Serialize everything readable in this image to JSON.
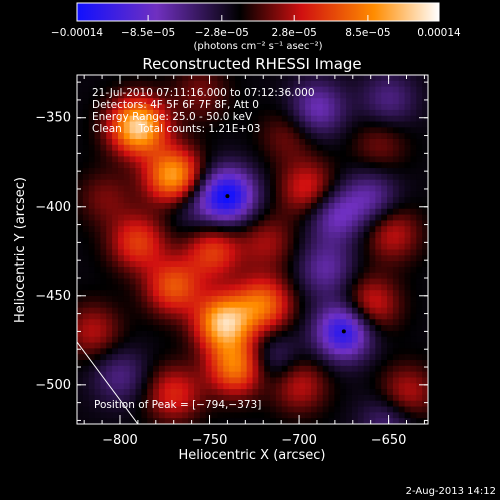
{
  "chart_data": {
    "type": "heatmap",
    "title": "Reconstructed RHESSI Image",
    "xlabel": "Heliocentric X (arcsec)",
    "ylabel": "Heliocentric Y (arcsec)",
    "xlim": [
      -824,
      -628
    ],
    "ylim": [
      -522,
      -326
    ],
    "xticks": [
      -800,
      -750,
      -700,
      -650
    ],
    "xtick_labels": [
      "−800",
      "−750",
      "−700",
      "−650"
    ],
    "yticks": [
      -350,
      -400,
      -450,
      -500
    ],
    "ytick_labels": [
      "−350",
      "−400",
      "−450",
      "−500"
    ],
    "colorbar": {
      "range": [
        -0.00014,
        0.00014
      ],
      "tick_values": [
        -0.00014,
        -8.5e-05,
        -2.8e-05,
        2.8e-05,
        8.5e-05,
        0.00014
      ],
      "tick_labels": [
        "−0.00014",
        "−8.5e−05",
        "−2.8e−05",
        "2.8e−05",
        "8.5e−05",
        "0.00014"
      ],
      "unit_label": "(photons cm⁻² s⁻¹ asec⁻²)",
      "colors": [
        "#1010ff",
        "#7030c0",
        "#000000",
        "#d01010",
        "#ff8c00",
        "#ffffff"
      ]
    },
    "annotations": [
      "21-Jul-2010 07:11:16.000 to 07:12:36.000",
      "Detectors: 4F 5F 6F 7F 8F, Att 0",
      "Energy Range: 25.0 - 50.0 keV",
      "Clean     Total counts: 1.21E+03"
    ],
    "peak_label": "Position of Peak = [−794,−373]",
    "minima_markers": [
      {
        "x": -740,
        "y": -394
      },
      {
        "x": -675,
        "y": -470
      }
    ],
    "limb_line": [
      {
        "x": -824,
        "y": -476
      },
      {
        "x": -790,
        "y": -522
      }
    ],
    "blobs": [
      {
        "x": -790,
        "y": -355,
        "v": 0.00014
      },
      {
        "x": -770,
        "y": -383,
        "v": 0.00012
      },
      {
        "x": -748,
        "y": -425,
        "v": 7e-05
      },
      {
        "x": -742,
        "y": -465,
        "v": 0.00013
      },
      {
        "x": -735,
        "y": -490,
        "v": 0.0001
      },
      {
        "x": -720,
        "y": -455,
        "v": 9e-05
      },
      {
        "x": -770,
        "y": -445,
        "v": 8e-05
      },
      {
        "x": -790,
        "y": -420,
        "v": 7e-05
      },
      {
        "x": -770,
        "y": -505,
        "v": 6e-05
      },
      {
        "x": -815,
        "y": -470,
        "v": 4.5e-05
      },
      {
        "x": -808,
        "y": -395,
        "v": 3e-05
      },
      {
        "x": -695,
        "y": -390,
        "v": 6e-05
      },
      {
        "x": -706,
        "y": -360,
        "v": 3e-05
      },
      {
        "x": -700,
        "y": -500,
        "v": 5e-05
      },
      {
        "x": -718,
        "y": -420,
        "v": 4e-05
      },
      {
        "x": -660,
        "y": -455,
        "v": 6e-05
      },
      {
        "x": -648,
        "y": -415,
        "v": 5e-05
      },
      {
        "x": -640,
        "y": -505,
        "v": 5e-05
      },
      {
        "x": -655,
        "y": -365,
        "v": 3e-05
      },
      {
        "x": -755,
        "y": -336,
        "v": 3e-05
      },
      {
        "x": -740,
        "y": -394,
        "v": -0.00012
      },
      {
        "x": -675,
        "y": -470,
        "v": -0.00011
      },
      {
        "x": -680,
        "y": -405,
        "v": -6e-05
      },
      {
        "x": -690,
        "y": -345,
        "v": -6e-05
      },
      {
        "x": -660,
        "y": -395,
        "v": -5e-05
      },
      {
        "x": -685,
        "y": -435,
        "v": -5e-05
      },
      {
        "x": -800,
        "y": -495,
        "v": -4e-05
      },
      {
        "x": -715,
        "y": -485,
        "v": -4e-05
      },
      {
        "x": -650,
        "y": -340,
        "v": -4e-05
      },
      {
        "x": -760,
        "y": -400,
        "v": -3e-05
      },
      {
        "x": -650,
        "y": -520,
        "v": -4e-05
      }
    ]
  },
  "footer": {
    "date": "2-Aug-2013 14:12"
  }
}
